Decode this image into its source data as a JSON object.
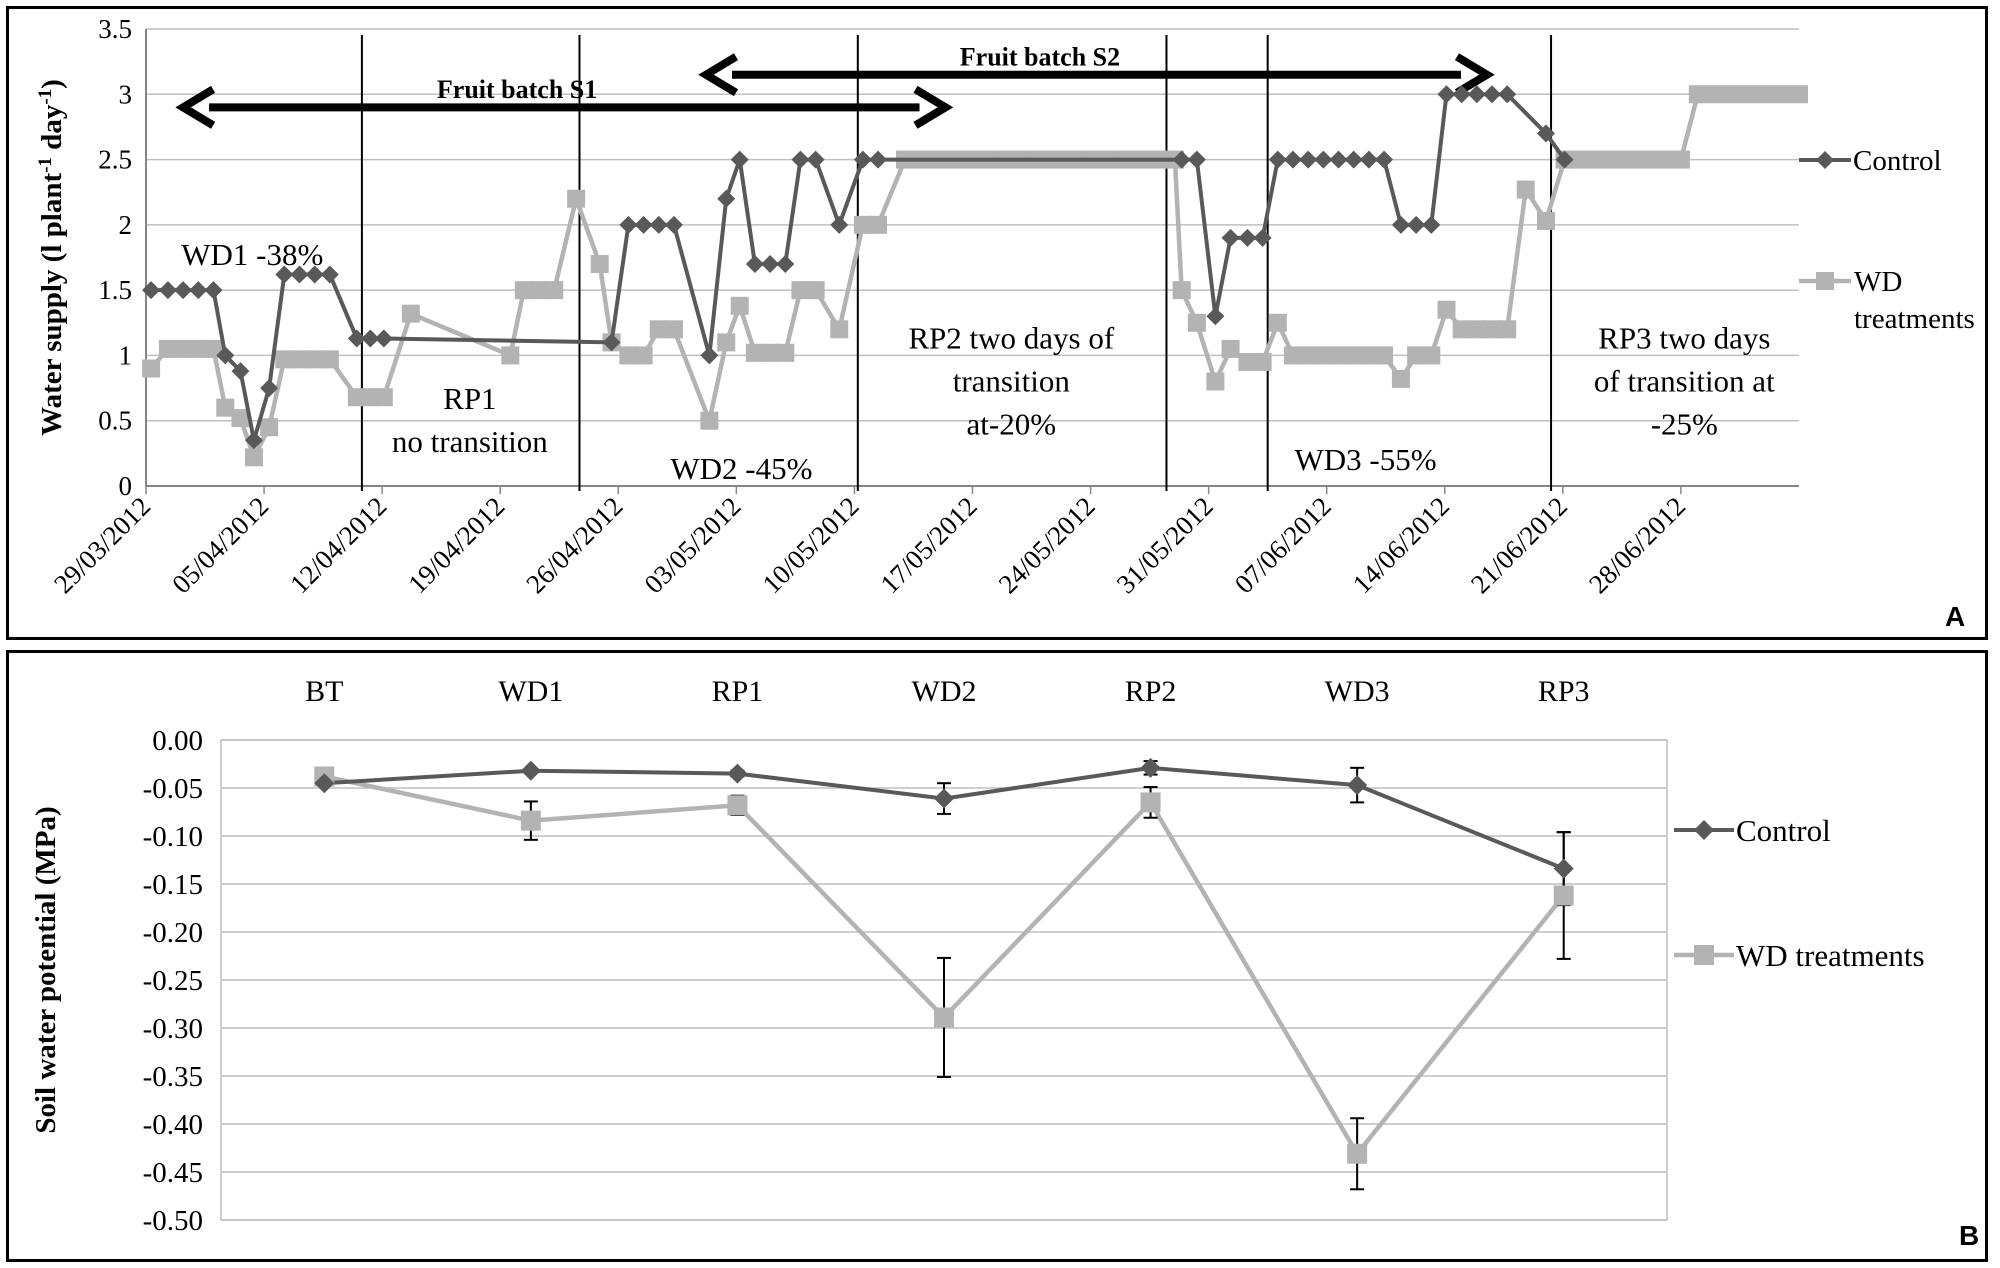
{
  "colors": {
    "control": "#595959",
    "wd": "#b3b3b3",
    "grid": "#bfbfbf",
    "axis": "#868686",
    "frame": "#000000"
  },
  "chart_data": [
    {
      "type": "line",
      "panel_label": "A",
      "ylabel": "Water supply (l plant",
      "ylabel_sup1": "-1",
      "ylabel_mid": " day",
      "ylabel_sup2": "-1",
      "ylabel_end": ")",
      "ylim": [
        0,
        3.5
      ],
      "yticks": [
        "0",
        "0.5",
        "1",
        "1.5",
        "2",
        "2.5",
        "3",
        "3.5"
      ],
      "x_start_date": "2012-03-29",
      "x_end_day": 98,
      "x_tick_labels": [
        "29/03/2012",
        "05/04/2012",
        "12/04/2012",
        "19/04/2012",
        "26/04/2012",
        "03/05/2012",
        "10/05/2012",
        "17/05/2012",
        "24/05/2012",
        "31/05/2012",
        "07/06/2012",
        "14/06/2012",
        "21/06/2012",
        "28/06/2012"
      ],
      "x_tick_days": [
        0,
        7,
        14,
        21,
        28,
        35,
        42,
        49,
        56,
        63,
        70,
        77,
        84,
        91
      ],
      "phase_boundaries_day": [
        12.8,
        25.7,
        42.2,
        60.5,
        66.5,
        83.3
      ],
      "phase_labels": [
        {
          "lines": [
            "WD1 -38%"
          ],
          "day": 6.3,
          "y": 1.77
        },
        {
          "lines": [
            "RP1",
            "no transition"
          ],
          "day": 19.2,
          "y": 0.5
        },
        {
          "lines": [
            "WD2 -45%"
          ],
          "day": 35.3,
          "y": 0.13
        },
        {
          "lines": [
            "RP2 two days of",
            "transition",
            "at-20%"
          ],
          "day": 51.3,
          "y": 0.8
        },
        {
          "lines": [
            "WD3 -55%"
          ],
          "day": 72.3,
          "y": 0.2
        },
        {
          "lines": [
            "RP3 two days",
            "of transition at",
            "-25%"
          ],
          "day": 91.2,
          "y": 0.8
        }
      ],
      "arrows": [
        {
          "label": "Fruit batch S1",
          "from_day": 2.2,
          "to_day": 47.4,
          "y": 2.9,
          "label_day": 22,
          "label_y": 2.97
        },
        {
          "label": "Fruit batch S2",
          "from_day": 33.2,
          "to_day": 79.5,
          "y": 3.15,
          "label_day": 53,
          "label_y": 3.22
        }
      ],
      "series": [
        {
          "name": "Control",
          "marker": "diamond",
          "points": [
            [
              0.3,
              1.5
            ],
            [
              1.3,
              1.5
            ],
            [
              2.2,
              1.5
            ],
            [
              3.1,
              1.5
            ],
            [
              4.0,
              1.5
            ],
            [
              4.7,
              1.0
            ],
            [
              5.6,
              0.88
            ],
            [
              6.4,
              0.35
            ],
            [
              7.3,
              0.75
            ],
            [
              8.2,
              1.62
            ],
            [
              9.1,
              1.62
            ],
            [
              10.0,
              1.62
            ],
            [
              10.9,
              1.62
            ],
            [
              12.5,
              1.13
            ],
            [
              13.3,
              1.13
            ],
            [
              14.1,
              1.13
            ],
            [
              27.6,
              1.1
            ],
            [
              28.6,
              2.0
            ],
            [
              29.5,
              2.0
            ],
            [
              30.4,
              2.0
            ],
            [
              31.3,
              2.0
            ],
            [
              33.4,
              1.0
            ],
            [
              34.4,
              2.2
            ],
            [
              35.2,
              2.5
            ],
            [
              36.1,
              1.7
            ],
            [
              37.0,
              1.7
            ],
            [
              37.9,
              1.7
            ],
            [
              38.8,
              2.5
            ],
            [
              39.7,
              2.5
            ],
            [
              41.1,
              2.0
            ],
            [
              42.5,
              2.5
            ],
            [
              43.4,
              2.5
            ],
            [
              61.4,
              2.5
            ],
            [
              62.3,
              2.5
            ],
            [
              63.4,
              1.3
            ],
            [
              64.3,
              1.9
            ],
            [
              65.3,
              1.9
            ],
            [
              66.2,
              1.9
            ],
            [
              67.1,
              2.5
            ],
            [
              68.0,
              2.5
            ],
            [
              68.9,
              2.5
            ],
            [
              69.8,
              2.5
            ],
            [
              70.7,
              2.5
            ],
            [
              71.6,
              2.5
            ],
            [
              72.5,
              2.5
            ],
            [
              73.4,
              2.5
            ],
            [
              74.4,
              2.0
            ],
            [
              75.3,
              2.0
            ],
            [
              76.2,
              2.0
            ],
            [
              77.1,
              3.0
            ],
            [
              78.0,
              3.0
            ],
            [
              78.9,
              3.0
            ],
            [
              79.8,
              3.0
            ],
            [
              80.7,
              3.0
            ],
            [
              83.0,
              2.7
            ],
            [
              84.1,
              2.5
            ]
          ]
        },
        {
          "name": "WD treatments",
          "name_lines": [
            "WD",
            "treatments"
          ],
          "marker": "square",
          "points": [
            [
              0.3,
              0.9
            ],
            [
              1.3,
              1.05
            ],
            [
              2.2,
              1.05
            ],
            [
              3.1,
              1.05
            ],
            [
              4.0,
              1.05
            ],
            [
              4.7,
              0.6
            ],
            [
              5.6,
              0.52
            ],
            [
              6.4,
              0.22
            ],
            [
              7.3,
              0.45
            ],
            [
              8.2,
              0.97
            ],
            [
              9.1,
              0.97
            ],
            [
              10.0,
              0.97
            ],
            [
              10.9,
              0.97
            ],
            [
              12.5,
              0.68
            ],
            [
              13.3,
              0.68
            ],
            [
              14.1,
              0.68
            ],
            [
              15.7,
              1.32
            ],
            [
              21.6,
              1.0
            ],
            [
              22.4,
              1.5
            ],
            [
              23.3,
              1.5
            ],
            [
              24.2,
              1.5
            ],
            [
              25.5,
              2.2
            ],
            [
              26.9,
              1.7
            ],
            [
              27.6,
              1.1
            ],
            [
              28.6,
              1.0
            ],
            [
              29.5,
              1.0
            ],
            [
              30.4,
              1.2
            ],
            [
              31.3,
              1.2
            ],
            [
              33.4,
              0.5
            ],
            [
              34.4,
              1.1
            ],
            [
              35.2,
              1.38
            ],
            [
              36.1,
              1.02
            ],
            [
              37.0,
              1.02
            ],
            [
              37.9,
              1.02
            ],
            [
              38.8,
              1.5
            ],
            [
              39.7,
              1.5
            ],
            [
              41.1,
              1.2
            ],
            [
              42.5,
              2.0
            ],
            [
              43.4,
              2.0
            ],
            [
              45.0,
              2.5
            ],
            [
              46.0,
              2.5
            ],
            [
              47.0,
              2.5
            ],
            [
              48.0,
              2.5
            ],
            [
              49.0,
              2.5
            ],
            [
              50.0,
              2.5
            ],
            [
              51.0,
              2.5
            ],
            [
              52.0,
              2.5
            ],
            [
              53.0,
              2.5
            ],
            [
              54.0,
              2.5
            ],
            [
              55.0,
              2.5
            ],
            [
              56.0,
              2.5
            ],
            [
              57.0,
              2.5
            ],
            [
              58.0,
              2.5
            ],
            [
              59.0,
              2.5
            ],
            [
              60.0,
              2.5
            ],
            [
              61.0,
              2.5
            ],
            [
              61.4,
              1.5
            ],
            [
              62.3,
              1.25
            ],
            [
              63.4,
              0.8
            ],
            [
              64.3,
              1.05
            ],
            [
              65.3,
              0.95
            ],
            [
              66.2,
              0.95
            ],
            [
              67.1,
              1.25
            ],
            [
              68.0,
              1.0
            ],
            [
              68.9,
              1.0
            ],
            [
              69.8,
              1.0
            ],
            [
              70.7,
              1.0
            ],
            [
              71.6,
              1.0
            ],
            [
              72.5,
              1.0
            ],
            [
              73.4,
              1.0
            ],
            [
              74.4,
              0.82
            ],
            [
              75.3,
              1.0
            ],
            [
              76.2,
              1.0
            ],
            [
              77.1,
              1.35
            ],
            [
              78.0,
              1.2
            ],
            [
              78.9,
              1.2
            ],
            [
              79.8,
              1.2
            ],
            [
              80.7,
              1.2
            ],
            [
              81.8,
              2.27
            ],
            [
              83.0,
              2.03
            ],
            [
              84.1,
              2.5
            ],
            [
              85.0,
              2.5
            ],
            [
              86.0,
              2.5
            ],
            [
              87.0,
              2.5
            ],
            [
              88.0,
              2.5
            ],
            [
              89.0,
              2.5
            ],
            [
              90.0,
              2.5
            ],
            [
              91.0,
              2.5
            ],
            [
              92.0,
              3.0
            ],
            [
              93.0,
              3.0
            ],
            [
              94.0,
              3.0
            ],
            [
              95.0,
              3.0
            ],
            [
              96.0,
              3.0
            ],
            [
              97.0,
              3.0
            ],
            [
              98.0,
              3.0
            ]
          ]
        }
      ]
    },
    {
      "type": "line",
      "panel_label": "B",
      "ylabel": "Soil water potential (MPa)",
      "ylim": [
        -0.5,
        0
      ],
      "yticks": [
        "0.00",
        "-0.05",
        "-0.10",
        "-0.15",
        "-0.20",
        "-0.25",
        "-0.30",
        "-0.35",
        "-0.40",
        "-0.45",
        "-0.50"
      ],
      "categories": [
        "BT",
        "WD1",
        "RP1",
        "WD2",
        "RP2",
        "WD3",
        "RP3"
      ],
      "series": [
        {
          "name": "Control",
          "marker": "diamond",
          "values": [
            -0.045,
            -0.032,
            -0.035,
            -0.061,
            -0.029,
            -0.047,
            -0.134
          ],
          "errors": [
            0,
            0,
            0.003,
            0.016,
            0.007,
            0.018,
            0.038
          ]
        },
        {
          "name": "WD treatments",
          "marker": "square",
          "values": [
            -0.038,
            -0.084,
            -0.068,
            -0.289,
            -0.065,
            -0.431,
            -0.162
          ],
          "errors": [
            0,
            0.02,
            0.01,
            0.062,
            0.016,
            0.037,
            0.066
          ]
        }
      ]
    }
  ]
}
